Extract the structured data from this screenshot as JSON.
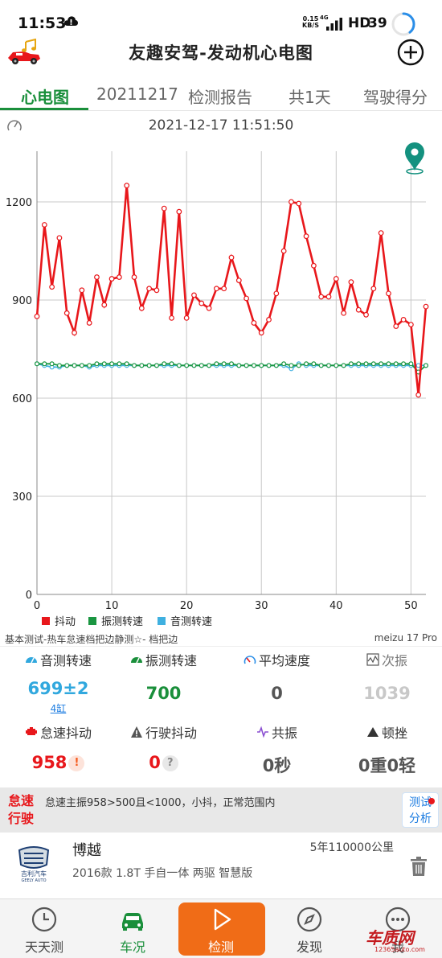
{
  "status": {
    "time": "11:53",
    "net_speed_top": "0.15",
    "net_speed_bottom": "KB/S",
    "net_type": "4G",
    "hd": "HD",
    "battery": "39"
  },
  "header": {
    "title": "友趣安驾-发动机心电图"
  },
  "tabs": [
    {
      "label": "心电图"
    },
    {
      "label": "20211217"
    },
    {
      "label": "检测报告"
    },
    {
      "label": "共1天"
    },
    {
      "label": "驾驶得分"
    }
  ],
  "datetime": "2021-12-17 11:51:50",
  "chart_data": {
    "type": "line",
    "xlim": [
      0,
      52
    ],
    "ylim": [
      0,
      1200
    ],
    "x_ticks": [
      0,
      10,
      20,
      30,
      40,
      50
    ],
    "y_ticks": [
      0,
      300,
      600,
      900,
      1200
    ],
    "grid": true,
    "legend_position": "bottom-left",
    "x": [
      0,
      1,
      2,
      3,
      4,
      5,
      6,
      7,
      8,
      9,
      10,
      11,
      12,
      13,
      14,
      15,
      16,
      17,
      18,
      19,
      20,
      21,
      22,
      23,
      24,
      25,
      26,
      27,
      28,
      29,
      30,
      31,
      32,
      33,
      34,
      35,
      36,
      37,
      38,
      39,
      40,
      41,
      42,
      43,
      44,
      45,
      46,
      47,
      48,
      49,
      50,
      51,
      52
    ],
    "series": [
      {
        "name": "抖动",
        "color": "#e8171b",
        "values": [
          850,
          1130,
          940,
          1090,
          860,
          800,
          930,
          830,
          970,
          885,
          965,
          970,
          1250,
          970,
          875,
          935,
          930,
          1180,
          845,
          1170,
          845,
          915,
          890,
          875,
          935,
          935,
          1030,
          960,
          905,
          830,
          800,
          840,
          920,
          1050,
          1200,
          1195,
          1095,
          1005,
          910,
          910,
          965,
          860,
          955,
          870,
          855,
          935,
          1105,
          920,
          820,
          840,
          825,
          610,
          880
        ]
      },
      {
        "name": "振测转速",
        "color": "#1a9641",
        "values": [
          705,
          705,
          705,
          700,
          700,
          700,
          700,
          700,
          705,
          705,
          705,
          705,
          705,
          700,
          700,
          700,
          700,
          705,
          705,
          700,
          700,
          700,
          700,
          700,
          705,
          705,
          705,
          700,
          700,
          700,
          700,
          700,
          700,
          705,
          700,
          700,
          705,
          705,
          700,
          700,
          700,
          700,
          705,
          705,
          705,
          705,
          705,
          705,
          705,
          705,
          705,
          680,
          700
        ]
      },
      {
        "name": "音测转速",
        "color": "#3fb0e0",
        "values": [
          705,
          700,
          695,
          695,
          700,
          700,
          700,
          695,
          700,
          700,
          700,
          700,
          700,
          700,
          700,
          700,
          700,
          700,
          700,
          700,
          700,
          700,
          700,
          700,
          700,
          700,
          700,
          700,
          700,
          700,
          700,
          700,
          700,
          700,
          690,
          705,
          700,
          700,
          700,
          700,
          700,
          700,
          700,
          700,
          700,
          700,
          700,
          700,
          700,
          700,
          700,
          700,
          700
        ]
      }
    ]
  },
  "test": {
    "description": "基本测试-热车怠速档把边静测☆- 档把边",
    "device": "meizu 17 Pro"
  },
  "metrics": {
    "sound_rpm": {
      "label": "音测转速",
      "value": "699±2",
      "sub": "4缸",
      "color": "#31a8de"
    },
    "vib_rpm": {
      "label": "振测转速",
      "value": "700",
      "color": "#1a8f3b"
    },
    "avg_speed": {
      "label": "平均速度",
      "value": "0",
      "color": "#555555"
    },
    "sub_vib": {
      "label": "次振",
      "value": "1039",
      "color": "#c8c8c8"
    },
    "idle_shake": {
      "label": "怠速抖动",
      "value": "958",
      "badge": "!",
      "color": "#e8171b"
    },
    "drive_shake": {
      "label": "行驶抖动",
      "value": "0",
      "badge": "?",
      "color": "#e8171b"
    },
    "resonance": {
      "label": "共振",
      "value": "0秒",
      "color": "#555555"
    },
    "jerk": {
      "label": "顿挫",
      "value": "0重0轻",
      "color": "#555555"
    }
  },
  "info": {
    "left_top": "怠速",
    "left_bottom": "行驶",
    "text": "怠速主振958>500且<1000，小抖，正常范围内",
    "btn_top": "测试",
    "btn_bottom": "分析"
  },
  "car": {
    "name": "博越",
    "model": "2016款 1.8T 手自一体 两驱 智慧版",
    "mileage": "5年110000公里",
    "brand_text": "吉利汽车",
    "brand_sub": "GEELY AUTO"
  },
  "nav": [
    {
      "label": "天天测",
      "icon": "clock-icon"
    },
    {
      "label": "车况",
      "icon": "car-icon"
    },
    {
      "label": "检测",
      "icon": "play-icon"
    },
    {
      "label": "发现",
      "icon": "compass-icon"
    },
    {
      "label": "我",
      "icon": "more-icon"
    }
  ],
  "watermark": {
    "main": "车质网",
    "sub": "12365auto.com"
  }
}
